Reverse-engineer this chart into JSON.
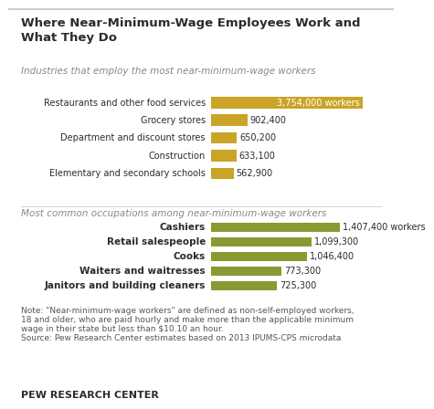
{
  "title_line1": "Where Near-Minimum-Wage Employees Work and",
  "title_line2": "What They Do",
  "subtitle1": "Industries that employ the most near-minimum-wage workers",
  "subtitle2": "Most common occupations among near-minimum-wage workers",
  "industries": {
    "labels": [
      "Restaurants and other food services",
      "Grocery stores",
      "Department and discount stores",
      "Construction",
      "Elementary and secondary schools"
    ],
    "values": [
      3754000,
      902400,
      650200,
      633100,
      562900
    ],
    "labels_display": [
      "3,754,000 workers",
      "902,400",
      "650,200",
      "633,100",
      "562,900"
    ],
    "color": "#C9A427"
  },
  "occupations": {
    "labels": [
      "Cashiers",
      "Retail salespeople",
      "Cooks",
      "Waiters and waitresses",
      "Janitors and building cleaners"
    ],
    "values": [
      1407400,
      1099300,
      1046400,
      773300,
      725300
    ],
    "labels_display": [
      "1,407,400 workers",
      "1,099,300",
      "1,046,400",
      "773,300",
      "725,300"
    ],
    "color": "#8B9933"
  },
  "note_line1": "Note: \"Near-minimum-wage workers\" are defined as non-self-employed workers,",
  "note_line2": "18 and older, who are paid hourly and make more than the applicable minimum",
  "note_line3": "wage in their state but less than $10.10 an hour.",
  "note_line4": "Source: Pew Research Center estimates based on 2013 IPUMS-CPS microdata",
  "footer": "PEW RESEARCH CENTER",
  "bg_color": "#FFFFFF",
  "text_color": "#2b2b2b",
  "note_color": "#555555",
  "subtitle_color": "#888888",
  "ind_xlim": 4300000,
  "occ_xlim": 1900000
}
